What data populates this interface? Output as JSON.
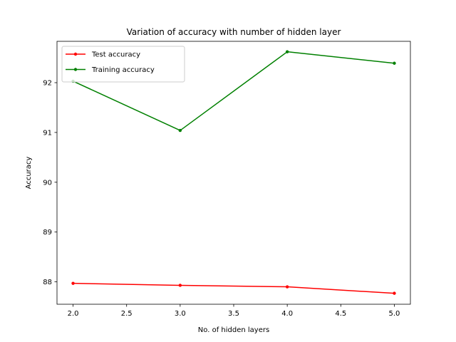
{
  "chart_data": {
    "type": "line",
    "title": "Variation of accuracy with number of hidden layer",
    "xlabel": "No. of hidden layers",
    "ylabel": "Accuracy",
    "xlim": [
      1.85,
      5.15
    ],
    "ylim": [
      87.55,
      92.83
    ],
    "xticks": [
      2.0,
      2.5,
      3.0,
      3.5,
      4.0,
      4.5,
      5.0
    ],
    "xtick_labels": [
      "2.0",
      "2.5",
      "3.0",
      "3.5",
      "4.0",
      "4.5",
      "5.0"
    ],
    "yticks": [
      88,
      89,
      90,
      91,
      92
    ],
    "ytick_labels": [
      "88",
      "89",
      "90",
      "91",
      "92"
    ],
    "x": [
      2,
      3,
      4,
      5
    ],
    "series": [
      {
        "name": "Test accuracy",
        "color": "#ff0000",
        "marker": "dot",
        "values": [
          87.97,
          87.93,
          87.9,
          87.77
        ]
      },
      {
        "name": "Training accuracy",
        "color": "#008000",
        "marker": "dot",
        "values": [
          92.03,
          91.04,
          92.62,
          92.39
        ]
      }
    ],
    "legend": "top-left",
    "grid": false
  }
}
